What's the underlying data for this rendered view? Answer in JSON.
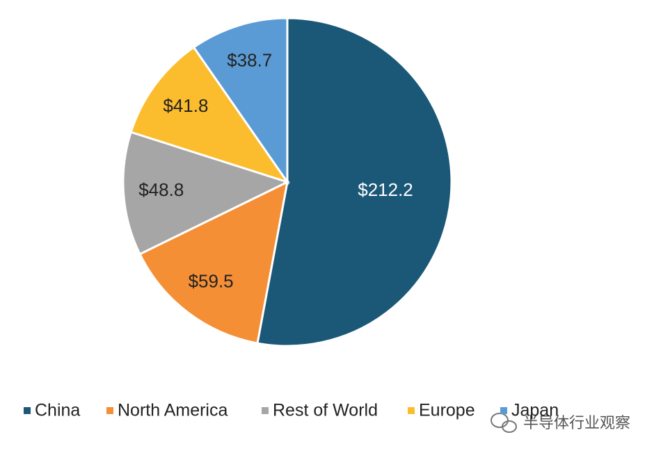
{
  "chart_data": {
    "type": "pie",
    "categories": [
      "China",
      "North America",
      "Rest of World",
      "Europe",
      "Japan"
    ],
    "values": [
      212.2,
      59.5,
      48.8,
      41.8,
      38.7
    ],
    "value_labels": [
      "$212.2",
      "$59.5",
      "$48.8",
      "$41.8",
      "$38.7"
    ],
    "colors": [
      "#1b5878",
      "#f58f35",
      "#a6a6a6",
      "#fbbd2e",
      "#5b9bd5"
    ],
    "legend": "bottom"
  },
  "watermark": "半导体行业观察"
}
